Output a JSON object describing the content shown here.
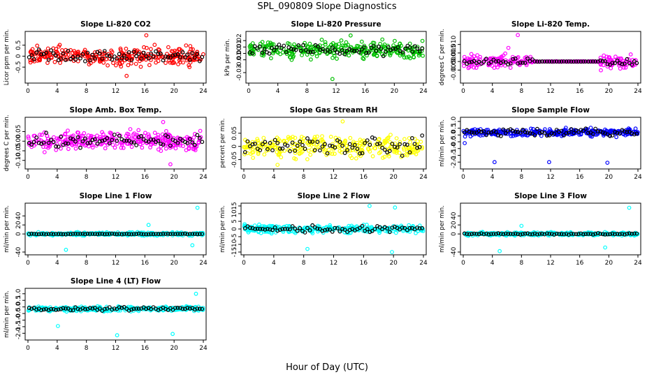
{
  "figure": {
    "title": "SPL_090809  Slope Diagnostics",
    "xlabel": "Hour of Day (UTC)"
  },
  "chart_data": [
    {
      "type": "scatter",
      "title": "Slope Li-820 CO2",
      "ylabel": "Licor ppm per min.",
      "color": "#ff0000",
      "xlim": [
        0,
        24
      ],
      "ylim": [
        -1.1,
        1.0
      ],
      "xticks": [
        0,
        4,
        8,
        12,
        16,
        20,
        24
      ],
      "yticks": [
        -0.5,
        0,
        0.5
      ],
      "ytick_labels": [
        "-0.5",
        "0",
        "0.5"
      ],
      "center": 0.0,
      "spread": 0.28,
      "overlay_spread": 0.22,
      "outliers": [
        {
          "x": 16.2,
          "y": 0.95
        },
        {
          "x": 13.5,
          "y": -0.9
        }
      ]
    },
    {
      "type": "scatter",
      "title": "Slope Li-820 Pressure",
      "ylabel": "kPa per min.",
      "color": "#00c000",
      "xlim": [
        0,
        24
      ],
      "ylim": [
        -0.042,
        0.03
      ],
      "xticks": [
        0,
        4,
        8,
        12,
        16,
        20,
        24
      ],
      "yticks": [
        -0.03,
        -0.01,
        0.0,
        0.01,
        0.02
      ],
      "ytick_labels": [
        "-0.03",
        "-0.01",
        "0.00",
        "0.01",
        "0.02"
      ],
      "center": 0.006,
      "spread": 0.009,
      "overlay_spread": 0.006,
      "outliers": [
        {
          "x": 11.5,
          "y": -0.04
        },
        {
          "x": 14,
          "y": 0.028
        }
      ]
    },
    {
      "type": "scatter",
      "title": "Slope Li-820 Temp.",
      "ylabel": "degrees C per min.",
      "color": "#ff00ff",
      "xlim": [
        0,
        24
      ],
      "ylim": [
        -0.011,
        0.016
      ],
      "xticks": [
        0,
        4,
        8,
        12,
        16,
        20,
        24
      ],
      "yticks": [
        -0.005,
        0.0,
        0.005,
        0.01
      ],
      "ytick_labels": [
        "-0.005",
        "0.000",
        "0.005",
        "0.010"
      ],
      "center": 0.0,
      "spread": 0.0028,
      "overlay_spread": 0.0015,
      "flat_range": [
        9.5,
        18.8
      ],
      "outliers": [
        {
          "x": 7.5,
          "y": 0.0155
        },
        {
          "x": 6.2,
          "y": 0.008
        }
      ]
    },
    {
      "type": "scatter",
      "title": "Slope Amb. Box Temp.",
      "ylabel": "degrees C per min.",
      "color": "#ff00ff",
      "xlim": [
        0,
        24
      ],
      "ylim": [
        -0.13,
        0.11
      ],
      "xticks": [
        0,
        4,
        8,
        12,
        16,
        20,
        24
      ],
      "yticks": [
        -0.1,
        -0.05,
        0.0,
        0.05
      ],
      "ytick_labels": [
        "-0.10",
        "-0.05",
        "0.00",
        "0.05"
      ],
      "center": 0.0,
      "spread": 0.035,
      "overlay_spread": 0.025,
      "outliers": [
        {
          "x": 18.5,
          "y": 0.1
        },
        {
          "x": 19.5,
          "y": -0.12
        }
      ]
    },
    {
      "type": "scatter",
      "title": "Slope Gas Stream RH",
      "ylabel": "percent per min.",
      "color": "#ffff00",
      "xlim": [
        0,
        24
      ],
      "ylim": [
        -0.075,
        0.1
      ],
      "xticks": [
        0,
        4,
        8,
        12,
        16,
        20,
        24
      ],
      "yticks": [
        -0.05,
        0.0,
        0.05
      ],
      "ytick_labels": [
        "-0.05",
        "0",
        "0.05"
      ],
      "center": 0.0,
      "spread": 0.03,
      "overlay_spread": 0.025,
      "outliers": [
        {
          "x": 13.2,
          "y": 0.095
        },
        {
          "x": 4.5,
          "y": -0.07
        }
      ]
    },
    {
      "type": "scatter",
      "title": "Slope Sample Flow",
      "ylabel": "ml/min per min.",
      "color": "#0000ff",
      "xlim": [
        0,
        24
      ],
      "ylim": [
        -2.3,
        1.1
      ],
      "xticks": [
        0,
        4,
        8,
        12,
        16,
        20,
        24
      ],
      "yticks": [
        -2,
        -1.5,
        -1,
        -0.5,
        0,
        0.5,
        1
      ],
      "ytick_labels": [
        "-2.0",
        "-1.5",
        "-1.0",
        "-0.5",
        "0.0",
        "0.5",
        "1.0"
      ],
      "center": 0.2,
      "spread": 0.2,
      "overlay_spread": 0.18,
      "outliers": [
        {
          "x": 4.3,
          "y": -2.0
        },
        {
          "x": 11.8,
          "y": -2.0
        },
        {
          "x": 19.8,
          "y": -2.05
        },
        {
          "x": 0.2,
          "y": -0.6
        }
      ]
    },
    {
      "type": "scatter",
      "title": "Slope Line 1 Flow",
      "ylabel": "ml/min per min.",
      "color": "#00ffff",
      "xlim": [
        0,
        24
      ],
      "ylim": [
        -40,
        62
      ],
      "xticks": [
        0,
        4,
        8,
        12,
        16,
        20,
        24
      ],
      "yticks": [
        -40,
        0,
        20,
        40
      ],
      "ytick_labels": [
        "-40",
        "0",
        "20",
        "40"
      ],
      "center": 0.0,
      "spread": 2.5,
      "overlay_spread": 0.5,
      "outliers": [
        {
          "x": 23.2,
          "y": 58
        },
        {
          "x": 22.5,
          "y": -25
        },
        {
          "x": 5.2,
          "y": -35
        },
        {
          "x": 16.5,
          "y": 20
        }
      ]
    },
    {
      "type": "scatter",
      "title": "Slope Line 2 Flow",
      "ylabel": "ml/min per min.",
      "color": "#00ffff",
      "xlim": [
        0,
        24
      ],
      "ylim": [
        -15,
        15
      ],
      "xticks": [
        0,
        4,
        8,
        12,
        16,
        20,
        24
      ],
      "yticks": [
        -15,
        -10,
        -5,
        0,
        5,
        10,
        15
      ],
      "ytick_labels": [
        "-15",
        "-10",
        "-5",
        "0",
        "5",
        "10",
        "15"
      ],
      "center": 0.0,
      "spread": 2.0,
      "overlay_spread": 1.5,
      "outliers": [
        {
          "x": 19.8,
          "y": -15
        },
        {
          "x": 8.5,
          "y": -13
        },
        {
          "x": 16.8,
          "y": 15
        },
        {
          "x": 20.2,
          "y": 14
        }
      ]
    },
    {
      "type": "scatter",
      "title": "Slope Line 3 Flow",
      "ylabel": "ml/min per min.",
      "color": "#00ffff",
      "xlim": [
        0,
        24
      ],
      "ylim": [
        -40,
        62
      ],
      "xticks": [
        0,
        4,
        8,
        12,
        16,
        20,
        24
      ],
      "yticks": [
        -40,
        0,
        20,
        40
      ],
      "ytick_labels": [
        "-40",
        "0",
        "20",
        "40"
      ],
      "center": 0.0,
      "spread": 2.5,
      "overlay_spread": 1.0,
      "outliers": [
        {
          "x": 22.8,
          "y": 58
        },
        {
          "x": 5.0,
          "y": -38
        },
        {
          "x": 19.5,
          "y": -30
        },
        {
          "x": 8.0,
          "y": 18
        }
      ]
    },
    {
      "type": "scatter",
      "title": "Slope Line 4 (LT) Flow",
      "ylabel": "ml/min per min.",
      "color": "#00ffff",
      "xlim": [
        0,
        24
      ],
      "ylim": [
        -2.3,
        1.2
      ],
      "xticks": [
        0,
        4,
        8,
        12,
        16,
        20,
        24
      ],
      "yticks": [
        -2,
        -1.5,
        -1,
        -0.5,
        0,
        0.5,
        1
      ],
      "ytick_labels": [
        "-2.0",
        "-1.5",
        "-1.0",
        "-0.5",
        "0.0",
        "0.5",
        "1.0"
      ],
      "center": -0.15,
      "spread": 0.12,
      "overlay_spread": 0.1,
      "outliers": [
        {
          "x": 4.1,
          "y": -1.45
        },
        {
          "x": 12.2,
          "y": -2.15
        },
        {
          "x": 19.8,
          "y": -2.05
        },
        {
          "x": 23.0,
          "y": 1.0
        }
      ]
    }
  ]
}
